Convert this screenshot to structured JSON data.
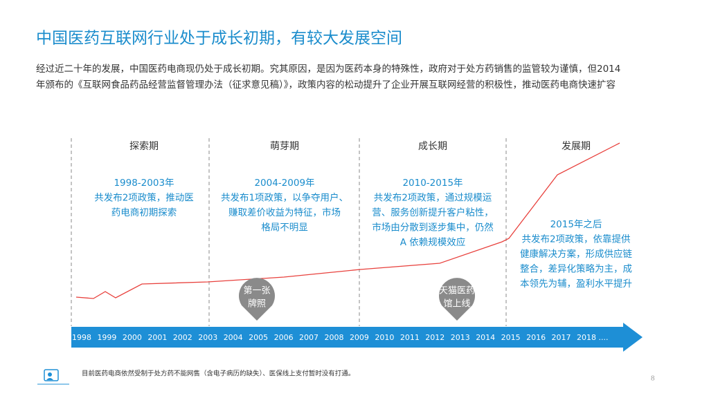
{
  "header": {
    "title": "中国医药互联网行业处于成长初期，有较大发展空间",
    "intro": [
      "经过近二十年的发展，中国医药电商现仍处于成长初期。究其原因，是因为医药本身的特殊性，政府对于处方药销售的监管较为谨慎，但2014",
      "年颁布的《互联网食品药品经营监督管理办法（征求意见稿）》，政策内容的松动提升了企业开展互联网经营的积极性，推动医药电商快速扩容"
    ]
  },
  "phases": [
    {
      "name": "探索期",
      "period": "1998-2003年",
      "description": [
        "共发布2项政策，推动医",
        "药电商初期探索"
      ]
    },
    {
      "name": "萌芽期",
      "period": "2004-2009年",
      "description": [
        "共发布1项政策，以争夺用户、",
        "赚取差价收益为特征，市场",
        "格局不明显"
      ]
    },
    {
      "name": "成长期",
      "period": "2010-2015年",
      "description": [
        "共发布2项政策，通过规模运",
        "营、服务创新提升客户粘性，",
        "市场由分散到逐步集中，仍然",
        "A 依赖规模效应"
      ]
    },
    {
      "name": "发展期",
      "period": "2015年之后",
      "description": [
        "共发布2项政策，依靠提供",
        "健康解决方案，形成供应链",
        "整合，差异化策略为主，成",
        "本领先为辅，盈利水平提升"
      ]
    }
  ],
  "milestones": [
    {
      "lines": [
        "第一张",
        "牌照"
      ]
    },
    {
      "lines": [
        "天猫医药",
        "馆上线"
      ]
    }
  ],
  "timeline": {
    "years": [
      "1998",
      "1999",
      "2000",
      "2001",
      "2002",
      "2003",
      "2004",
      "2005",
      "2006",
      "2007",
      "2008",
      "2009",
      "2010",
      "2011",
      "2012",
      "2013",
      "2014",
      "2015",
      "2016",
      "2017",
      "2018 ...."
    ]
  },
  "footer": {
    "note": "目前医药电商依然受制于处方药不能网售（含电子病历的缺失）、医保线上支付暂时没有打通。",
    "page_number": "8"
  }
}
